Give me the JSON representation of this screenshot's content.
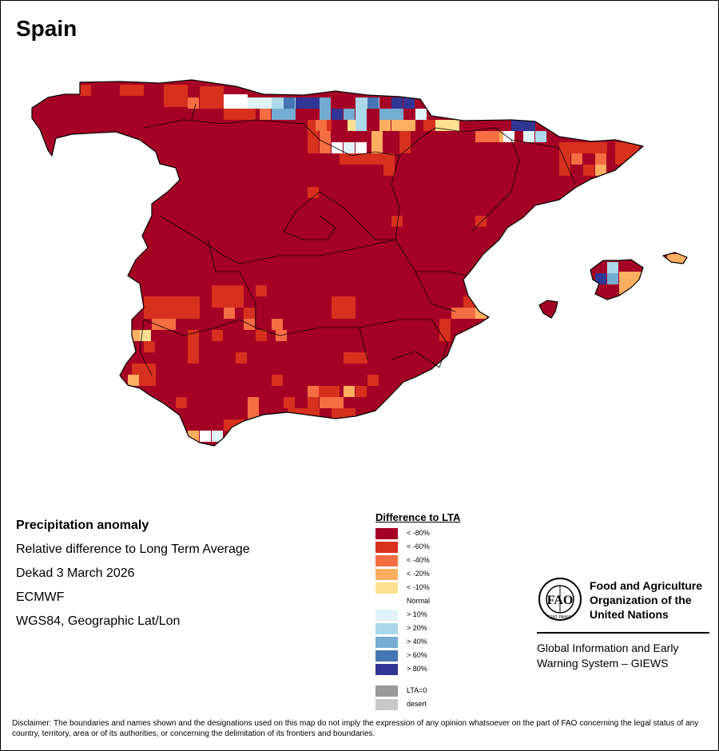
{
  "map": {
    "title": "Spain",
    "colors": {
      "ocean": "#ffffff",
      "land_normal": "#ffffff",
      "border": "#000000"
    }
  },
  "info": {
    "heading": "Precipitation anomaly",
    "subtitle": "Relative difference to Long Term Average",
    "period": "Dekad 3 March 2026",
    "source": "ECMWF",
    "projection": "WGS84, Geographic Lat/Lon"
  },
  "legend": {
    "title": "Difference to LTA",
    "items": [
      {
        "label": "< -80%",
        "color": "#a50026"
      },
      {
        "label": "< -60%",
        "color": "#d7301f"
      },
      {
        "label": "< -40%",
        "color": "#f46d43"
      },
      {
        "label": "< -20%",
        "color": "#fdae61"
      },
      {
        "label": "< -10%",
        "color": "#fee090"
      },
      {
        "label": "Normal",
        "color": "#ffffff"
      },
      {
        "label": "> 10%",
        "color": "#e0f3f8"
      },
      {
        "label": "> 20%",
        "color": "#abd9e9"
      },
      {
        "label": "> 40%",
        "color": "#74add1"
      },
      {
        "label": "> 60%",
        "color": "#4575b4"
      },
      {
        "label": "> 80%",
        "color": "#313695"
      }
    ],
    "extra": [
      {
        "label": "LTA=0",
        "color": "#999999"
      },
      {
        "label": "desert",
        "color": "#c8c8c8"
      }
    ]
  },
  "organization": {
    "name": "Food and Agriculture Organization of the United Nations",
    "emblem_text": "FIAT PANIS",
    "program": "Global Information and Early Warning System – GIEWS"
  },
  "disclaimer": "Disclaimer: The boundaries and names shown and the designations used on this map do not imply the expression of any opinion whatsoever on the part of FAO concerning the legal status of any country, territory, area or of its authorities, or concerning the delimitation of its frontiers and boundaries."
}
